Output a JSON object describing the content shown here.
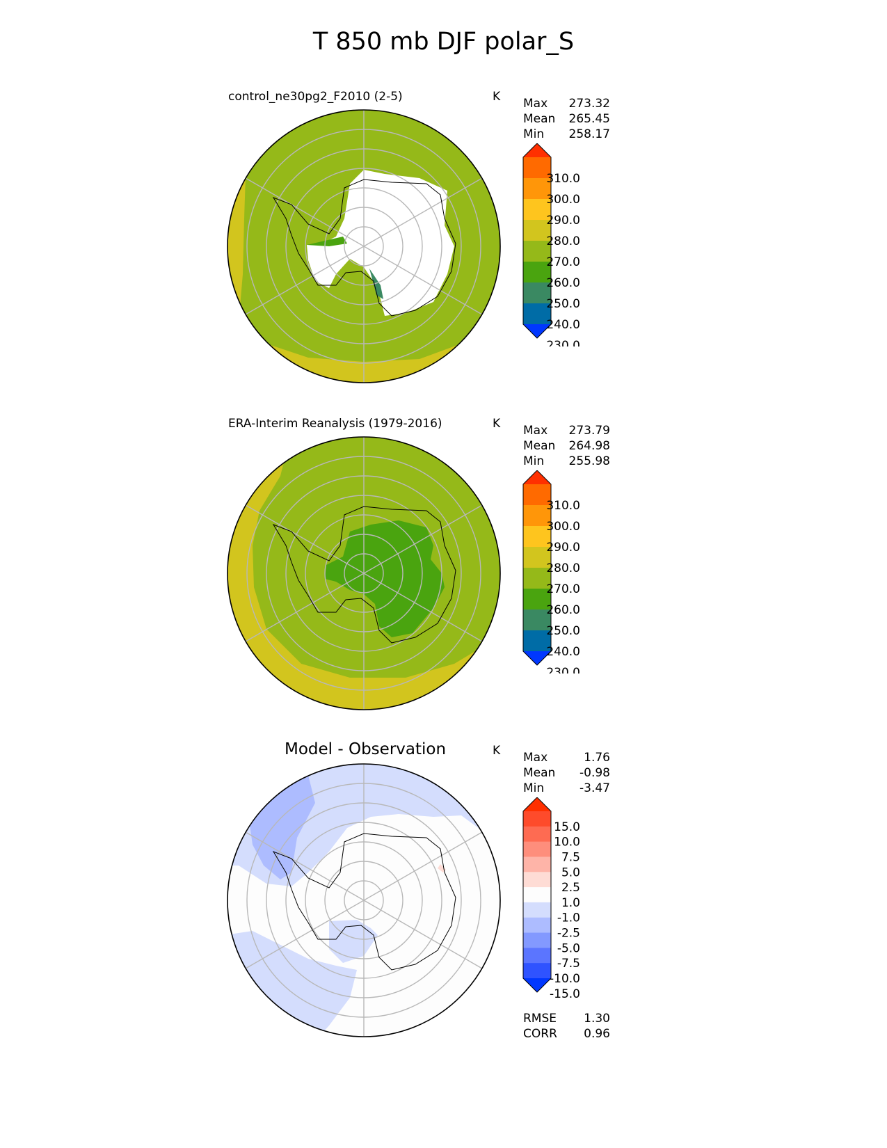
{
  "title": "T 850 mb DJF polar_S",
  "units": "K",
  "panels": [
    {
      "name": "test",
      "title": "control_ne30pg2_F2010 (2-5)",
      "stats": [
        {
          "label": "Max",
          "value": "273.32"
        },
        {
          "label": "Mean",
          "value": "265.45"
        },
        {
          "label": "Min",
          "value": "258.17"
        }
      ],
      "colorbar": {
        "labels": [
          "310.0",
          "300.0",
          "290.0",
          "280.0",
          "270.0",
          "260.0",
          "250.0",
          "240.0",
          "230.0"
        ],
        "colors": [
          "#0037ff",
          "#006ca6",
          "#3a8962",
          "#4aa40f",
          "#95b919",
          "#d2c51e",
          "#fec51e",
          "#ff9609",
          "#ff6a00",
          "#ff3000"
        ]
      }
    },
    {
      "name": "reference",
      "title": "ERA-Interim Reanalysis (1979-2016)",
      "stats": [
        {
          "label": "Max",
          "value": "273.79"
        },
        {
          "label": "Mean",
          "value": "264.98"
        },
        {
          "label": "Min",
          "value": "255.98"
        }
      ],
      "colorbar": {
        "labels": [
          "310.0",
          "300.0",
          "290.0",
          "280.0",
          "270.0",
          "260.0",
          "250.0",
          "240.0",
          "230.0"
        ],
        "colors": [
          "#0037ff",
          "#006ca6",
          "#3a8962",
          "#4aa40f",
          "#95b919",
          "#d2c51e",
          "#fec51e",
          "#ff9609",
          "#ff6a00",
          "#ff3000"
        ]
      }
    },
    {
      "name": "difference",
      "title": "Model - Observation",
      "stats": [
        {
          "label": "Max",
          "value": "1.76"
        },
        {
          "label": "Mean",
          "value": "-0.98"
        },
        {
          "label": "Min",
          "value": "-3.47"
        }
      ],
      "metrics": [
        {
          "label": "RMSE",
          "value": "1.30"
        },
        {
          "label": "CORR",
          "value": "0.96"
        }
      ],
      "colorbar": {
        "labels": [
          "15.0",
          "10.0",
          "7.5",
          "5.0",
          "2.5",
          "1.0",
          "-1.0",
          "-2.5",
          "-5.0",
          "-7.5",
          "-10.0",
          "-15.0"
        ],
        "colors": [
          "#0037ff",
          "#2f53ff",
          "#5b75ff",
          "#8399ff",
          "#adbcff",
          "#d4ddfd",
          "#fdfdfd",
          "#fedcd5",
          "#feb4a8",
          "#fe8e7c",
          "#fe6b52",
          "#fe4b2b",
          "#ff3000"
        ]
      }
    }
  ]
}
